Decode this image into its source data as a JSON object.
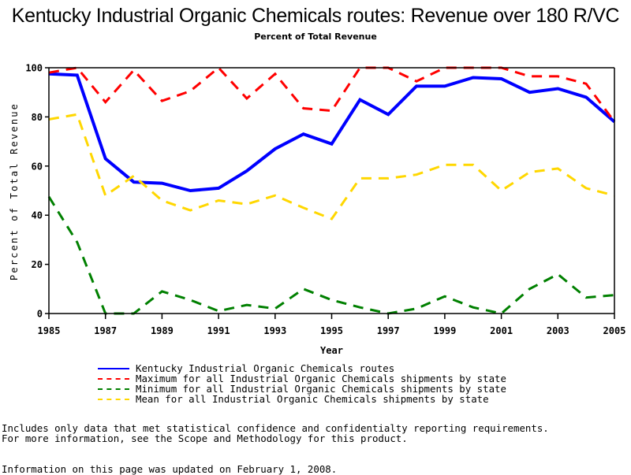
{
  "chart_data": {
    "type": "line",
    "title": "Kentucky Industrial Organic Chemicals routes: Revenue over 180 R/VC",
    "subtitle": "Percent of Total Revenue",
    "xlabel": "Year",
    "ylabel": "Percent of Total Revenue",
    "x": [
      1985,
      1986,
      1987,
      1988,
      1989,
      1990,
      1991,
      1992,
      1993,
      1994,
      1995,
      1996,
      1997,
      1998,
      1999,
      2000,
      2001,
      2002,
      2003,
      2004,
      2005
    ],
    "xlim": [
      1985,
      2005
    ],
    "ylim": [
      0,
      100
    ],
    "x_ticks": [
      "1985",
      "1987",
      "1989",
      "1991",
      "1993",
      "1995",
      "1997",
      "1999",
      "2001",
      "2003",
      "2005"
    ],
    "y_ticks": [
      "0",
      "20",
      "40",
      "60",
      "80",
      "100"
    ],
    "grid": false,
    "legend_position": "bottom",
    "series": [
      {
        "name": "Kentucky Industrial Organic Chemicals routes",
        "color": "#0000ff",
        "style": "solid",
        "values": [
          97.5,
          97,
          63,
          53.5,
          53,
          50,
          51,
          58,
          67,
          73,
          69,
          87,
          81,
          92.5,
          92.5,
          96,
          95.5,
          90,
          91.5,
          88,
          78
        ]
      },
      {
        "name": "Maximum for all Industrial Organic Chemicals shipments by state",
        "color": "#ff0000",
        "style": "dashed",
        "values": [
          98,
          100,
          86,
          99,
          86.5,
          90.5,
          100,
          87.5,
          97.5,
          83.5,
          82.5,
          100,
          100,
          94.5,
          100,
          100,
          100,
          96.5,
          96.5,
          93.5,
          78
        ]
      },
      {
        "name": "Minimum for all Industrial Organic Chemicals shipments by state",
        "color": "#008000",
        "style": "dashed",
        "values": [
          47.5,
          29,
          0,
          0,
          9,
          5.5,
          1,
          3.5,
          2,
          10,
          5.5,
          2.5,
          0,
          2,
          7,
          2.5,
          0,
          10,
          16,
          6.5,
          7.5
        ]
      },
      {
        "name": "Mean for all Industrial Organic Chemicals shipments by state",
        "color": "#ffd700",
        "style": "dashed",
        "values": [
          79,
          81,
          48,
          56,
          46,
          42,
          46,
          44.5,
          48,
          43,
          38.5,
          55,
          55,
          56.5,
          60.5,
          60.5,
          50,
          57.5,
          59,
          51,
          48
        ]
      }
    ]
  },
  "notes": {
    "line1": "Includes only data that met statistical confidence and confidentialty reporting requirements.",
    "line2": "For more information, see the Scope and Methodology for this product.",
    "updated": "Information on this page was updated on February 1, 2008."
  }
}
